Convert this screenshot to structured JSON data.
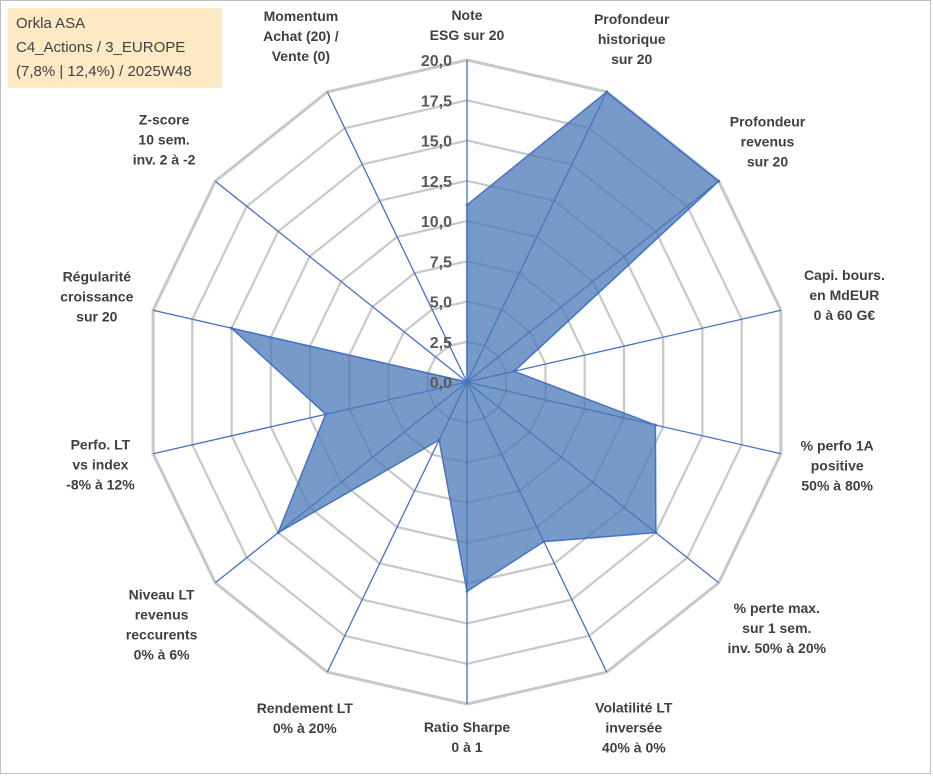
{
  "info": {
    "line1": "Orkla ASA",
    "line2": "C4_Actions / 3_EUROPE",
    "line3": "(7,8% | 12,4%) / 2025W48"
  },
  "colors": {
    "grid": "#c8c8c8",
    "spoke": "#4472c4",
    "fill": "#4a78b5",
    "stroke": "#4472c4",
    "info_bg": "#fde9c4"
  },
  "chart_data": {
    "type": "radar",
    "rmax": 20,
    "ticks": [
      "0,0",
      "2,5",
      "5,0",
      "7,5",
      "10,0",
      "12,5",
      "15,0",
      "17,5",
      "20,0"
    ],
    "tick_values": [
      0,
      2.5,
      5,
      7.5,
      10,
      12.5,
      15,
      17.5,
      20
    ],
    "categories": [
      {
        "lines": [
          "Note",
          "ESG sur 20"
        ]
      },
      {
        "lines": [
          "Profondeur",
          "historique",
          "sur 20"
        ]
      },
      {
        "lines": [
          "Profondeur",
          "revenus",
          "sur 20"
        ]
      },
      {
        "lines": [
          "Capi. bours.",
          "en MdEUR",
          "0 à 60 G€"
        ]
      },
      {
        "lines": [
          "% perfo 1A",
          "positive",
          "50% à 80%"
        ]
      },
      {
        "lines": [
          "% perte max.",
          "sur 1 sem.",
          "inv. 50% à 20%"
        ]
      },
      {
        "lines": [
          "Volatilité LT",
          "inversée",
          "40% à 0%"
        ]
      },
      {
        "lines": [
          "Ratio Sharpe",
          "0 à 1"
        ]
      },
      {
        "lines": [
          "Rendement LT",
          "0% à 20%"
        ]
      },
      {
        "lines": [
          "Niveau LT",
          "revenus",
          "reccurents",
          "0% à 6%"
        ]
      },
      {
        "lines": [
          "Perfo. LT",
          "vs index",
          "-8% à 12%"
        ]
      },
      {
        "lines": [
          "Régularité",
          "croissance",
          "sur 20"
        ]
      },
      {
        "lines": [
          "Z-score",
          "10 sem.",
          "inv. 2 à -2"
        ]
      },
      {
        "lines": [
          "Momentum",
          "Achat (20) /",
          "Vente (0)"
        ]
      }
    ],
    "values": [
      11,
      20,
      20,
      3,
      12,
      15,
      11,
      13,
      4,
      15,
      9,
      15,
      0,
      0
    ]
  }
}
